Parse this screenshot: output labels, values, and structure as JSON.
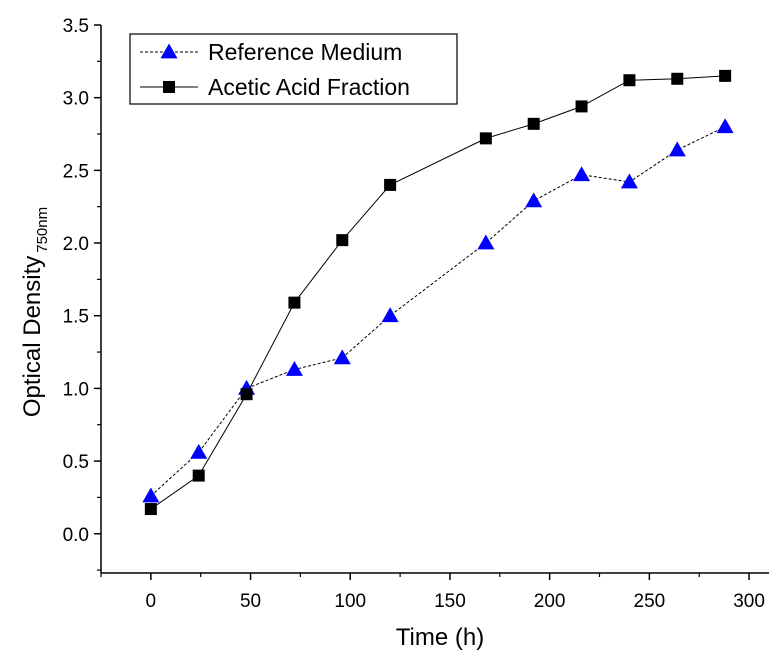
{
  "chart_data": {
    "type": "line",
    "title": "",
    "xlabel": "Time (h)",
    "ylabel": "Optical Density",
    "ylabel_subscript": "750nm",
    "xlim": [
      -25,
      310
    ],
    "ylim": [
      -0.27,
      3.5
    ],
    "xticks": [
      0,
      50,
      100,
      150,
      200,
      250,
      300
    ],
    "xtick_labels": [
      "0",
      "50",
      "100",
      "150",
      "200",
      "250",
      "300"
    ],
    "yticks": [
      0.0,
      0.5,
      1.0,
      1.5,
      2.0,
      2.5,
      3.0,
      3.5
    ],
    "ytick_labels": [
      "0.0",
      "0.5",
      "1.0",
      "1.5",
      "2.0",
      "2.5",
      "3.0",
      "3.5"
    ],
    "grid": false,
    "legend_position": "top-left",
    "series": [
      {
        "name": "Reference Medium",
        "marker": "triangle",
        "line_style": "dashed",
        "color": "#0000ff",
        "x": [
          0,
          24,
          48,
          72,
          96,
          120,
          168,
          192,
          216,
          240,
          264,
          288
        ],
        "y": [
          0.26,
          0.56,
          1.0,
          1.13,
          1.21,
          1.5,
          2.0,
          2.29,
          2.47,
          2.42,
          2.64,
          2.8
        ]
      },
      {
        "name": "Acetic Acid Fraction",
        "marker": "square",
        "line_style": "solid",
        "color": "#000000",
        "x": [
          0,
          24,
          48,
          72,
          96,
          120,
          168,
          192,
          216,
          240,
          264,
          288
        ],
        "y": [
          0.17,
          0.4,
          0.96,
          1.59,
          2.02,
          2.4,
          2.72,
          2.82,
          2.94,
          3.12,
          3.13,
          3.15
        ]
      }
    ]
  }
}
